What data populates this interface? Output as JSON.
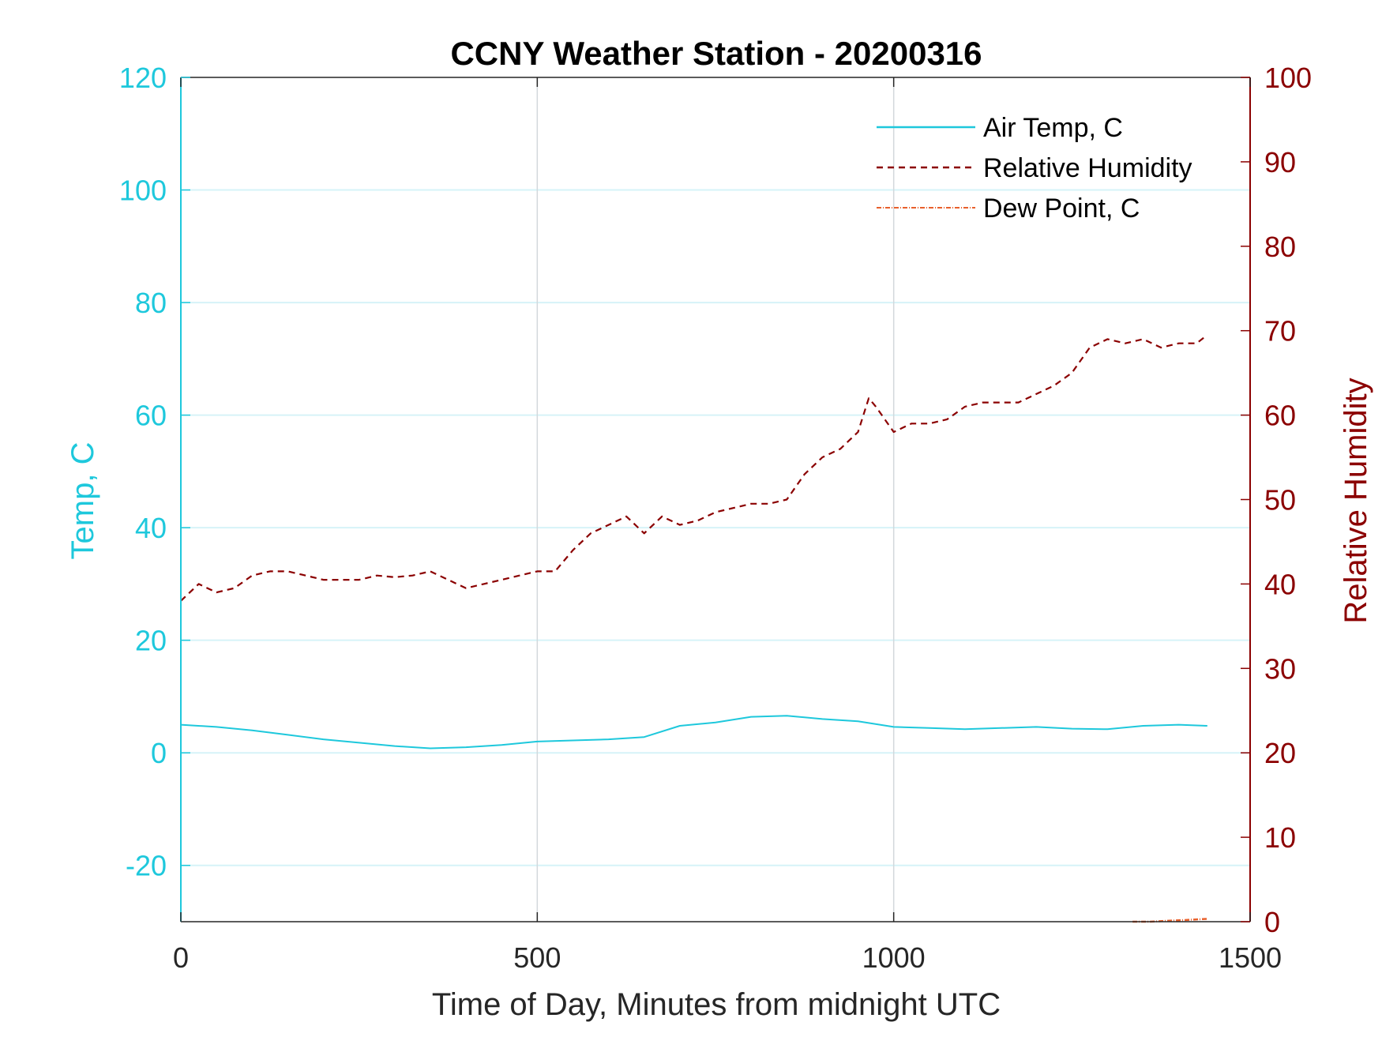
{
  "chart_data": {
    "type": "line",
    "title": "CCNY Weather Station - 20200316",
    "xlabel": "Time of Day, Minutes from midnight UTC",
    "ylabel_left": "Temp, C",
    "ylabel_right": "Relative Humidity",
    "xlim": [
      0,
      1500
    ],
    "ylim_left": [
      -30,
      120
    ],
    "ylim_right": [
      0,
      100
    ],
    "xticks": [
      0,
      500,
      1000,
      1500
    ],
    "yticks_left": [
      -20,
      0,
      20,
      40,
      60,
      80,
      100,
      120
    ],
    "yticks_right": [
      0,
      10,
      20,
      30,
      40,
      50,
      60,
      70,
      80,
      90,
      100
    ],
    "grid": true,
    "legend_position": "top-right",
    "colors": {
      "air_temp": "#1ec8dc",
      "relative_humidity": "#8b0000",
      "dew_point": "#e8602c",
      "grid_horizontal": "#d6f3f8",
      "grid_vertical": "#d3d8dc",
      "axes": "#262626"
    },
    "series": [
      {
        "name": "Air Temp, C",
        "axis": "left",
        "style": "solid",
        "x": [
          0,
          50,
          100,
          150,
          200,
          250,
          300,
          350,
          400,
          450,
          500,
          550,
          600,
          650,
          700,
          750,
          800,
          850,
          900,
          950,
          1000,
          1050,
          1100,
          1150,
          1200,
          1250,
          1300,
          1350,
          1400,
          1440
        ],
        "values": [
          5.0,
          4.6,
          4.0,
          3.2,
          2.4,
          1.8,
          1.2,
          0.8,
          1.0,
          1.4,
          2.0,
          2.2,
          2.4,
          2.8,
          4.8,
          5.4,
          6.4,
          6.6,
          6.0,
          5.6,
          4.6,
          4.4,
          4.2,
          4.4,
          4.6,
          4.3,
          4.2,
          4.8,
          5.0,
          4.8
        ]
      },
      {
        "name": "Relative Humidity",
        "axis": "right",
        "style": "dashed",
        "x": [
          0,
          25,
          50,
          75,
          100,
          125,
          150,
          175,
          200,
          225,
          250,
          275,
          300,
          325,
          350,
          375,
          400,
          425,
          450,
          475,
          500,
          525,
          550,
          575,
          600,
          625,
          650,
          675,
          700,
          725,
          750,
          775,
          800,
          825,
          850,
          875,
          900,
          925,
          950,
          965,
          975,
          1000,
          1025,
          1050,
          1075,
          1100,
          1125,
          1150,
          1175,
          1200,
          1225,
          1250,
          1275,
          1300,
          1325,
          1350,
          1375,
          1400,
          1425,
          1440
        ],
        "values": [
          38,
          40,
          39,
          39.5,
          41,
          41.5,
          41.5,
          41,
          40.5,
          40.5,
          40.5,
          41,
          40.8,
          41,
          41.5,
          40.5,
          39.5,
          40,
          40.5,
          41,
          41.5,
          41.5,
          44,
          46,
          47,
          48,
          46,
          48,
          47,
          47.5,
          48.5,
          49,
          49.5,
          49.5,
          50,
          53,
          55,
          56,
          58,
          62,
          61,
          58,
          59,
          59,
          59.5,
          61,
          61.5,
          61.5,
          61.5,
          62.5,
          63.5,
          65,
          68,
          69,
          68.5,
          69,
          68,
          68.5,
          68.5,
          69.5
        ]
      },
      {
        "name": "Dew Point, C",
        "axis": "left",
        "style": "dash-dot",
        "x": [
          1335,
          1360,
          1390,
          1410,
          1440
        ],
        "values": [
          -30,
          -30,
          -29.8,
          -29.7,
          -29.5
        ]
      }
    ]
  }
}
